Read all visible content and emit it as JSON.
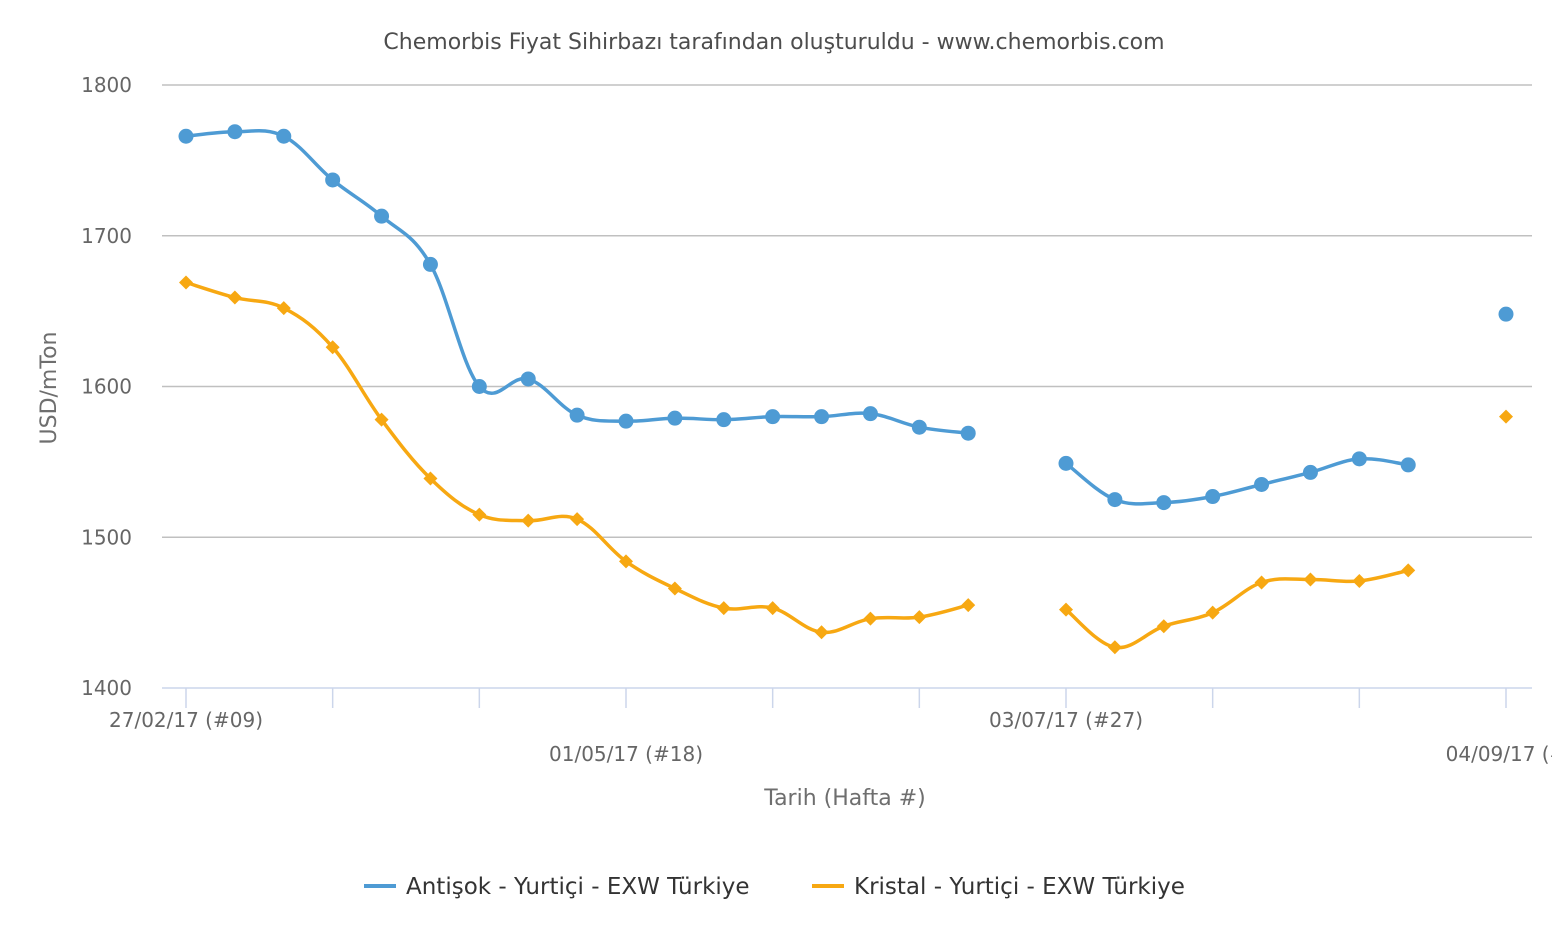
{
  "chart_data": {
    "type": "line",
    "title": "Chemorbis Fiyat Sihirbazı tarafından oluşturuldu - www.chemorbis.com",
    "xlabel": "Tarih (Hafta #)",
    "ylabel": "USD/mTon",
    "ylim": [
      1400,
      1800
    ],
    "yticks": [
      "1800",
      "1700",
      "1600",
      "1500",
      "1400"
    ],
    "x_labels": [
      {
        "week": 9,
        "text": "27/02/17 (#09)"
      },
      {
        "week": 18,
        "text": "01/05/17 (#18)"
      },
      {
        "week": 27,
        "text": "03/07/17 (#27)"
      },
      {
        "week": 36,
        "text": "04/09/17 (#"
      }
    ],
    "x_tick_weeks": [
      9,
      12,
      15,
      18,
      21,
      24,
      27,
      30,
      33,
      36
    ],
    "weeks": [
      9,
      10,
      11,
      12,
      13,
      14,
      15,
      16,
      17,
      18,
      19,
      20,
      21,
      22,
      23,
      24,
      25,
      26,
      27,
      28,
      29,
      30,
      31,
      32,
      33,
      34,
      35,
      36
    ],
    "grid": true,
    "legend_position": "bottom-center",
    "series": [
      {
        "name": "Antişok - Yurtiçi - EXW Türkiye",
        "color": "#4e9bd4",
        "marker": "circle",
        "values": [
          1766,
          1769,
          1766,
          1737,
          1713,
          1681,
          1600,
          1605,
          1581,
          1577,
          1579,
          1578,
          1580,
          1580,
          1582,
          1573,
          1569,
          null,
          1549,
          1525,
          1523,
          1527,
          1535,
          1543,
          1552,
          1548,
          null,
          1648
        ]
      },
      {
        "name": "Kristal - Yurtiçi - EXW Türkiye",
        "color": "#f7a812",
        "marker": "diamond",
        "values": [
          1669,
          1659,
          1652,
          1626,
          1578,
          1539,
          1515,
          1511,
          1512,
          1484,
          1466,
          1453,
          1453,
          1437,
          1446,
          1447,
          1455,
          null,
          1452,
          1427,
          1441,
          1450,
          1470,
          1472,
          1471,
          1478,
          null,
          1580
        ]
      }
    ]
  }
}
